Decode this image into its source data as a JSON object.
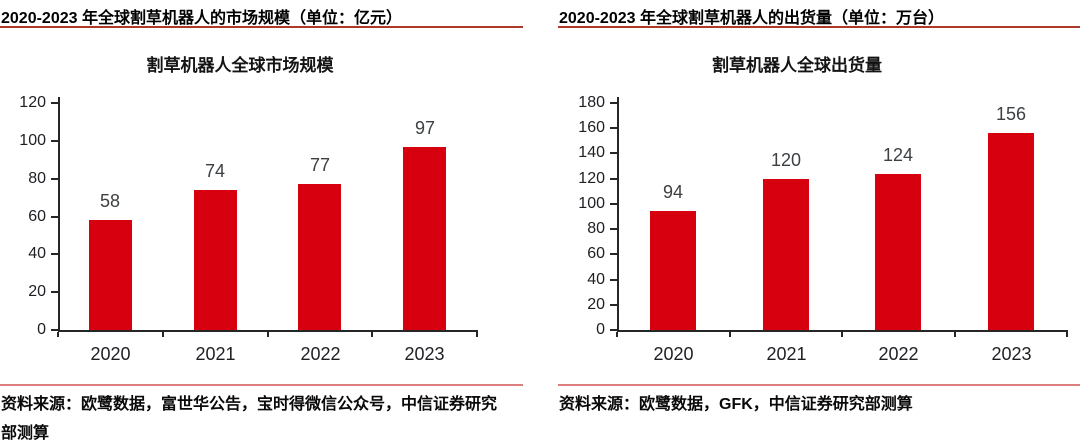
{
  "panels": [
    {
      "header": "2020-2023 年全球割草机器人的市场规模（单位：亿元）",
      "source": "资料来源：欧鹭数据，富世华公告，宝时得微信公众号，中信证券研究部测算"
    },
    {
      "header": "2020-2023 年全球割草机器人的出货量（单位：万台）",
      "source": "资料来源：欧鹭数据，GFK，中信证券研究部测算"
    }
  ],
  "chart_data": [
    {
      "type": "bar",
      "title": "割草机器人全球市场规模",
      "categories": [
        "2020",
        "2021",
        "2022",
        "2023"
      ],
      "values": [
        58,
        74,
        77,
        97
      ],
      "unit": "亿元",
      "xlabel": "",
      "ylabel": "",
      "ylim": [
        0,
        120
      ],
      "ytick_step": 20,
      "grid": false,
      "legend_position": "none",
      "bar_color": "#d7000f",
      "data_labels": true
    },
    {
      "type": "bar",
      "title": "割草机器人全球出货量",
      "categories": [
        "2020",
        "2021",
        "2022",
        "2023"
      ],
      "values": [
        94,
        120,
        124,
        156
      ],
      "unit": "万台",
      "xlabel": "",
      "ylabel": "",
      "ylim": [
        0,
        180
      ],
      "ytick_step": 20,
      "grid": false,
      "legend_position": "none",
      "bar_color": "#d7000f",
      "data_labels": true
    }
  ],
  "colors": {
    "bar": "#d7000f",
    "header_rule": "#ac3a2b",
    "footer_rule": "#dd7f7f",
    "axis": "#262626",
    "tick_text": "#1d1f23",
    "value_label": "#3c4043"
  }
}
